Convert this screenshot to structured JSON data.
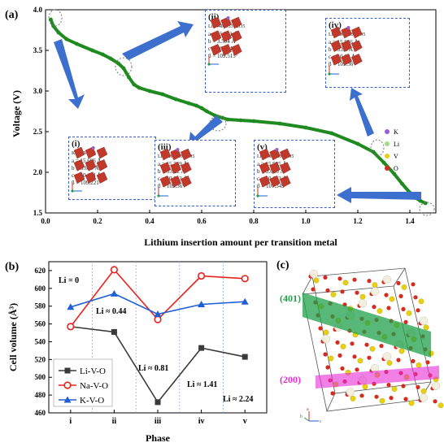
{
  "panels": {
    "a": {
      "label": "(a)",
      "chart_data": {
        "type": "line",
        "xlabel": "Lithium insertion amount per transition metal",
        "ylabel": "Voltage (V)",
        "xlim": [
          0.0,
          1.5
        ],
        "ylim": [
          1.5,
          4.0
        ],
        "xticks": [
          "0.0",
          "0.2",
          "0.4",
          "0.6",
          "0.8",
          "1.0",
          "1.2",
          "1.4"
        ],
        "yticks": [
          "1.5",
          "2.0",
          "2.5",
          "3.0",
          "3.5",
          "4.0"
        ],
        "series": [
          {
            "color": "#1f8a1f",
            "x": [
              0.02,
              0.03,
              0.05,
              0.08,
              0.12,
              0.18,
              0.22,
              0.25,
              0.28,
              0.3,
              0.32,
              0.34,
              0.36,
              0.4,
              0.45,
              0.5,
              0.55,
              0.58,
              0.6,
              0.62,
              0.65,
              0.68,
              0.7,
              0.75,
              0.8,
              0.9,
              1.0,
              1.1,
              1.2,
              1.26,
              1.3,
              1.34,
              1.37,
              1.4,
              1.42,
              1.44,
              1.46
            ],
            "y": [
              3.88,
              3.8,
              3.72,
              3.64,
              3.58,
              3.5,
              3.45,
              3.4,
              3.34,
              3.28,
              3.17,
              3.08,
              3.04,
              3.0,
              2.96,
              2.9,
              2.85,
              2.82,
              2.79,
              2.75,
              2.7,
              2.67,
              2.65,
              2.64,
              2.63,
              2.6,
              2.55,
              2.48,
              2.35,
              2.25,
              2.12,
              1.98,
              1.86,
              1.75,
              1.69,
              1.65,
              1.62
            ]
          }
        ]
      },
      "legend": [
        {
          "symbol": "K",
          "color": "#9a5cd6"
        },
        {
          "symbol": "Li",
          "color": "#9fdc8a"
        },
        {
          "symbol": "V",
          "color": "#e8d010"
        },
        {
          "symbol": "O",
          "color": "#d62b1e"
        }
      ],
      "insets": [
        {
          "label": "(i)",
          "formula": "K0.33V2O5",
          "a": "a = 15.666 Å",
          "b": "b = 3.655 Å",
          "c": "c = 10.114 Å",
          "beta": "β = 109.221°"
        },
        {
          "label": "(ii)",
          "formula": "Li0.44K0.33V2O5",
          "a": "a = 15.901 Å",
          "b": "b = 3.594 Å",
          "c": "c = 10.394 Å",
          "beta": "β = 109.515°"
        },
        {
          "label": "(iii)",
          "formula": "Li0.81K0.33V2O5",
          "a": "a = 15.769 Å",
          "b": "b = 3.622 Å",
          "c": "c = 10.013 Å",
          "beta": "β = 109.36°"
        },
        {
          "label": "(iv)",
          "formula": "Li1.41K0.33V2O5",
          "a": "a = 15.886 Å",
          "b": "b = 3.68 Å",
          "c": "c = 10.02 Å",
          "beta": "β = 109.36°"
        },
        {
          "label": "(v)",
          "formula": "Li2.24K0.33V2O5",
          "a": "a = 15.935 Å",
          "b": "b = 3.636 Å",
          "c": "c = 10.053 Å",
          "beta": "β = 107.349°"
        }
      ]
    },
    "b": {
      "label": "(b)",
      "chart_data": {
        "type": "line",
        "xlabel": "Phase",
        "ylabel": "Cell volume (Å³)",
        "categories": [
          "i",
          "ii",
          "iii",
          "iv",
          "v"
        ],
        "ylim": [
          460,
          630
        ],
        "yticks": [
          "460",
          "480",
          "500",
          "520",
          "540",
          "560",
          "580",
          "600",
          "620"
        ],
        "series": [
          {
            "name": "Li-V-O",
            "color": "#3a3a3a",
            "marker": "square",
            "values": [
              557,
              551,
              472,
              533,
              523
            ]
          },
          {
            "name": "Na-V-O",
            "color": "#e8221c",
            "marker": "circle",
            "values": [
              557,
              621,
              565,
              614,
              611
            ]
          },
          {
            "name": "K-V-O",
            "color": "#1f5fd6",
            "marker": "triangle",
            "values": [
              579,
              594,
              571,
              582,
              585
            ]
          }
        ],
        "annotations": [
          "Li = 0",
          "Li ≈ 0.44",
          "Li ≈ 0.81",
          "Li ≈ 1.41",
          "Li ≈ 2.24"
        ]
      }
    },
    "c": {
      "label": "(c)",
      "planes": [
        {
          "text": "(401)",
          "color": "#1fa04a"
        },
        {
          "text": "(200)",
          "color": "#e62bd6"
        }
      ],
      "axes": [
        "a",
        "b",
        "c"
      ]
    }
  }
}
